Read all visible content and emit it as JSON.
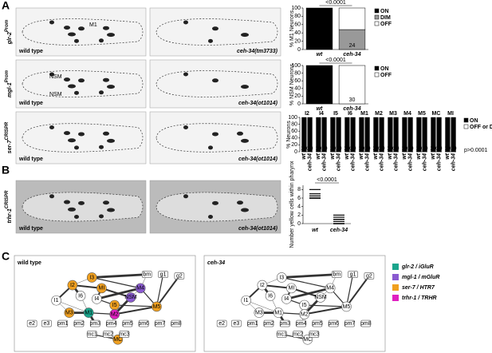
{
  "panels": [
    "A",
    "B",
    "C"
  ],
  "images": {
    "rows": [
      {
        "gene": "glr-2",
        "sup": "Prom",
        "left": "wild type",
        "right": "ceh-34(tm3733)",
        "marks": [
          "M1"
        ]
      },
      {
        "gene": "mgl-1",
        "sup": "Prom",
        "left": "wild type",
        "right": "ceh-34(ot1014)",
        "marks": [
          "NSM",
          "NSM"
        ]
      },
      {
        "gene": "ser-7",
        "sup": "CRISPR",
        "left": "wild type",
        "right": "ceh-34(ot1014)",
        "marks": []
      },
      {
        "gene": "trhr-1",
        "sup": "CRISPR",
        "left": "wild type",
        "right": "ceh-34(ot1014)",
        "marks": []
      }
    ]
  },
  "chart_data": [
    {
      "type": "stacked-bar",
      "ylabel": "% M1 Neurons",
      "categories": [
        "wt",
        "ceh-34"
      ],
      "series": [
        {
          "name": "ON",
          "color": "#000000",
          "values": [
            100,
            0
          ]
        },
        {
          "name": "DIM",
          "color": "#999999",
          "values": [
            0,
            48
          ]
        },
        {
          "name": "OFF",
          "color": "#ffffff",
          "values": [
            0,
            52
          ]
        }
      ],
      "n_labels": [
        "21",
        "24"
      ],
      "ylim": [
        0,
        100
      ],
      "yticks": [
        0,
        20,
        40,
        60,
        80,
        100
      ],
      "annotation": "<0.0001"
    },
    {
      "type": "stacked-bar",
      "ylabel": "% NSM Neurons",
      "categories": [
        "wt",
        "ceh-34"
      ],
      "series": [
        {
          "name": "ON",
          "color": "#000000",
          "values": [
            100,
            0
          ]
        },
        {
          "name": "OFF",
          "color": "#ffffff",
          "values": [
            0,
            100
          ]
        }
      ],
      "n_labels": [
        "30",
        "30"
      ],
      "ylim": [
        0,
        100
      ],
      "yticks": [
        0,
        20,
        40,
        60,
        80,
        100
      ],
      "annotation": "<0.0001"
    },
    {
      "type": "grouped-bar",
      "ylabel": "% Neurons",
      "groups": [
        "I2",
        "I4",
        "I5",
        "I6",
        "M1",
        "M2",
        "M3",
        "M4",
        "M5",
        "MC",
        "MI"
      ],
      "categories": [
        "wt",
        "ceh-34"
      ],
      "series": [
        {
          "name": "ON",
          "color": "#000000",
          "values": [
            [
              100,
              100
            ],
            [
              100,
              100
            ],
            [
              100,
              100
            ],
            [
              100,
              100
            ],
            [
              100,
              100
            ],
            [
              100,
              100
            ],
            [
              100,
              100
            ],
            [
              100,
              100
            ],
            [
              100,
              100
            ],
            [
              100,
              100
            ],
            [
              100,
              100
            ]
          ]
        },
        {
          "name": "OFF or DIM",
          "color": "#ffffff",
          "values": [
            [
              0,
              0
            ],
            [
              0,
              0
            ],
            [
              0,
              0
            ],
            [
              0,
              0
            ],
            [
              0,
              0
            ],
            [
              0,
              0
            ],
            [
              0,
              0
            ],
            [
              0,
              0
            ],
            [
              0,
              0
            ],
            [
              0,
              0
            ],
            [
              0,
              0
            ]
          ]
        }
      ],
      "n_labels": [
        [
          "20",
          "20"
        ],
        [
          "10",
          "10"
        ],
        [
          "10",
          "10"
        ],
        [
          "20",
          "20"
        ],
        [
          "10",
          "10"
        ],
        [
          "20",
          "20"
        ],
        [
          "20",
          "20"
        ],
        [
          "10",
          "10"
        ],
        [
          "10",
          "10"
        ],
        [
          "20",
          "20"
        ],
        [
          "10",
          "10"
        ]
      ],
      "ylim": [
        0,
        100
      ],
      "yticks": [
        0,
        20,
        40,
        60,
        80,
        100
      ],
      "annotation": "p>0.0001"
    },
    {
      "type": "dot",
      "ylabel": "Number yellow cells within pharynx",
      "categories": [
        "wt",
        "ceh-34"
      ],
      "values": [
        [
          6,
          6,
          6,
          6,
          6,
          6.5,
          7,
          8
        ],
        [
          0,
          0,
          0,
          0,
          0.5,
          1,
          1,
          1.5,
          2
        ]
      ],
      "ylim": [
        0,
        9
      ],
      "yticks": [
        0,
        2,
        4,
        6,
        8
      ],
      "annotation": "<0.0001"
    }
  ],
  "networks": [
    {
      "title": "wild type",
      "nodes": [
        {
          "label": "I3",
          "color": "#f0a020"
        },
        {
          "label": "I2",
          "color": "#f0a020"
        },
        {
          "label": "I1",
          "color": null
        },
        {
          "label": "I4",
          "color": null
        },
        {
          "label": "I5",
          "color": "#f0a020"
        },
        {
          "label": "I6",
          "color": null
        },
        {
          "label": "M1",
          "color": "#1aa58c"
        },
        {
          "label": "M2",
          "color": "#e020c0"
        },
        {
          "label": "M3",
          "color": "#f0a020"
        },
        {
          "label": "M4",
          "color": "#8a5ad0"
        },
        {
          "label": "M5",
          "color": "#f0a020"
        },
        {
          "label": "MI",
          "color": "#f0a020"
        },
        {
          "label": "MC",
          "color": "#f0a020"
        },
        {
          "label": "NSM",
          "color": "#8a5ad0"
        },
        {
          "label": "bm",
          "color": null
        },
        {
          "label": "g1",
          "color": null
        },
        {
          "label": "g2",
          "color": null
        },
        {
          "label": "e2",
          "color": null
        },
        {
          "label": "e3",
          "color": null
        },
        {
          "label": "pm1",
          "color": null
        },
        {
          "label": "pm2",
          "color": null
        },
        {
          "label": "pm3",
          "color": null
        },
        {
          "label": "pm4",
          "color": null
        },
        {
          "label": "pm5",
          "color": null
        },
        {
          "label": "pm6",
          "color": null
        },
        {
          "label": "pm7",
          "color": null
        },
        {
          "label": "pm8",
          "color": null
        },
        {
          "label": "mc1",
          "color": null
        },
        {
          "label": "mc2",
          "color": null
        },
        {
          "label": "mc3",
          "color": null
        }
      ]
    },
    {
      "title": "ceh-34",
      "nodes": [
        {
          "label": "I3",
          "color": null
        },
        {
          "label": "I2",
          "color": null
        },
        {
          "label": "I1",
          "color": null
        },
        {
          "label": "I4",
          "color": null
        },
        {
          "label": "I5",
          "color": null
        },
        {
          "label": "I6",
          "color": null
        },
        {
          "label": "M1",
          "color": null
        },
        {
          "label": "M2",
          "color": null
        },
        {
          "label": "M3",
          "color": null
        },
        {
          "label": "M4",
          "color": null
        },
        {
          "label": "M5",
          "color": null
        },
        {
          "label": "MI",
          "color": null
        },
        {
          "label": "MC",
          "color": null
        },
        {
          "label": "NSM",
          "color": null
        },
        {
          "label": "bm",
          "color": null
        },
        {
          "label": "g1",
          "color": null
        },
        {
          "label": "g2",
          "color": null
        },
        {
          "label": "e2",
          "color": null
        },
        {
          "label": "e3",
          "color": null
        },
        {
          "label": "pm1",
          "color": null
        },
        {
          "label": "pm2",
          "color": null
        },
        {
          "label": "pm3",
          "color": null
        },
        {
          "label": "pm4",
          "color": null
        },
        {
          "label": "pm5",
          "color": null
        },
        {
          "label": "pm6",
          "color": null
        },
        {
          "label": "pm7",
          "color": null
        },
        {
          "label": "pm8",
          "color": null
        },
        {
          "label": "mc1",
          "color": null
        },
        {
          "label": "mc2",
          "color": null
        },
        {
          "label": "mc3",
          "color": null
        }
      ]
    }
  ],
  "legend": [
    {
      "label": "glr-2 / iGluR",
      "color": "#1aa58c"
    },
    {
      "label": "mgl-1 / mGluR",
      "color": "#8a5ad0"
    },
    {
      "label": "ser-7 / HTR7",
      "color": "#f0a020"
    },
    {
      "label": "trhr-1 / TRHR",
      "color": "#e020c0"
    }
  ]
}
